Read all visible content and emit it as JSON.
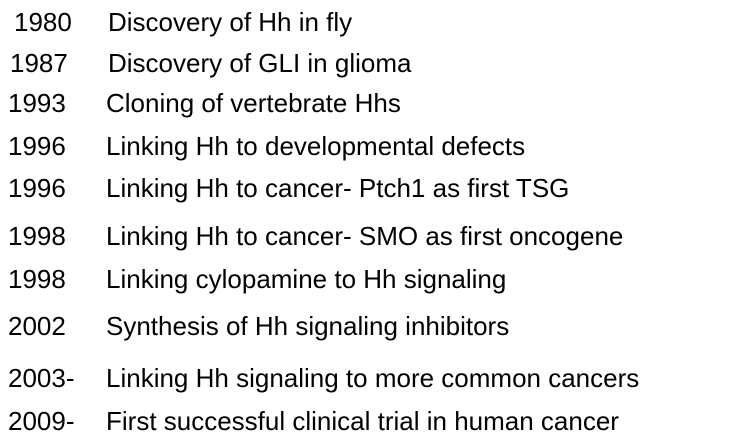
{
  "timeline": {
    "entries": [
      {
        "year": "1980",
        "event": "Discovery of Hh in fly"
      },
      {
        "year": "1987",
        "event": "Discovery of GLI in glioma"
      },
      {
        "year": "1993",
        "event": "Cloning of vertebrate Hhs"
      },
      {
        "year": "1996",
        "event": "Linking Hh to developmental defects"
      },
      {
        "year": "1996",
        "event": "Linking Hh to cancer- Ptch1 as first TSG"
      },
      {
        "year": "1998",
        "event": "Linking Hh to cancer- SMO as first oncogene"
      },
      {
        "year": "1998",
        "event": "Linking cylopamine to Hh signaling"
      },
      {
        "year": "2002",
        "event": "Synthesis of Hh signaling inhibitors"
      },
      {
        "year": "2003-",
        "event": "Linking Hh signaling to more common cancers"
      },
      {
        "year": "2009-",
        "event": "First successful clinical trial in human cancer"
      }
    ]
  }
}
